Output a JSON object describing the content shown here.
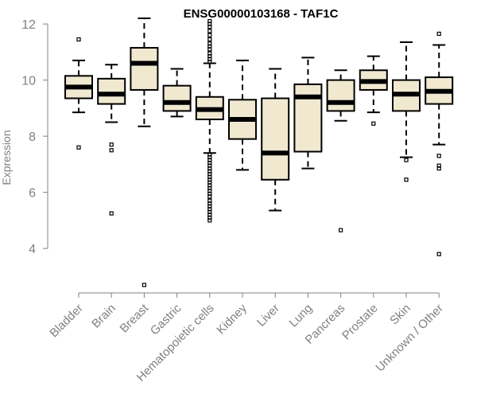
{
  "chart_data": {
    "type": "boxplot",
    "title": "ENSG00000103168 - TAF1C",
    "ylabel": "Expression",
    "xlabel": "",
    "ylim": [
      2.5,
      12.4
    ],
    "yticks": [
      4,
      6,
      8,
      10,
      12
    ],
    "categories": [
      "Bladder",
      "Brain",
      "Breast",
      "Gastric",
      "Hematopoietic cells",
      "Kidney",
      "Liver",
      "Lung",
      "Pancreas",
      "Prostate",
      "Skin",
      "Unknown / Other"
    ],
    "boxes": [
      {
        "name": "Bladder",
        "whisker_low": 8.85,
        "q1": 9.35,
        "median": 9.75,
        "q3": 10.15,
        "whisker_high": 10.7,
        "outliers": [
          11.45,
          7.6
        ]
      },
      {
        "name": "Brain",
        "whisker_low": 8.5,
        "q1": 9.15,
        "median": 9.5,
        "q3": 10.05,
        "whisker_high": 10.55,
        "outliers": [
          7.7,
          7.5,
          5.25
        ]
      },
      {
        "name": "Breast",
        "whisker_low": 8.35,
        "q1": 9.65,
        "median": 10.6,
        "q3": 11.15,
        "whisker_high": 12.2,
        "outliers": [
          2.7
        ]
      },
      {
        "name": "Gastric",
        "whisker_low": 8.7,
        "q1": 8.9,
        "median": 9.2,
        "q3": 9.8,
        "whisker_high": 10.4,
        "outliers": []
      },
      {
        "name": "Hematopoietic cells",
        "whisker_low": 7.4,
        "q1": 8.6,
        "median": 8.95,
        "q3": 9.4,
        "whisker_high": 10.6,
        "outliers": [
          12.1,
          12.0,
          11.9,
          11.75,
          11.6,
          11.45,
          11.3,
          11.2,
          11.1,
          10.95,
          10.85,
          10.75,
          10.65,
          7.35,
          7.25,
          7.15,
          7.05,
          6.95,
          6.85,
          6.75,
          6.65,
          6.55,
          6.45,
          6.35,
          6.25,
          6.15,
          6.05,
          5.95,
          5.85,
          5.7,
          5.6,
          5.5,
          5.4,
          5.3,
          5.2,
          5.1,
          5.0
        ]
      },
      {
        "name": "Kidney",
        "whisker_low": 6.8,
        "q1": 7.9,
        "median": 8.6,
        "q3": 9.3,
        "whisker_high": 10.7,
        "outliers": []
      },
      {
        "name": "Liver",
        "whisker_low": 5.35,
        "q1": 6.45,
        "median": 7.4,
        "q3": 9.35,
        "whisker_high": 10.4,
        "outliers": []
      },
      {
        "name": "Lung",
        "whisker_low": 6.85,
        "q1": 7.45,
        "median": 9.4,
        "q3": 9.85,
        "whisker_high": 10.8,
        "outliers": []
      },
      {
        "name": "Pancreas",
        "whisker_low": 8.55,
        "q1": 8.9,
        "median": 9.2,
        "q3": 10.0,
        "whisker_high": 10.35,
        "outliers": [
          4.65
        ]
      },
      {
        "name": "Prostate",
        "whisker_low": 8.85,
        "q1": 9.65,
        "median": 9.95,
        "q3": 10.35,
        "whisker_high": 10.85,
        "outliers": [
          8.45
        ]
      },
      {
        "name": "Skin",
        "whisker_low": 7.25,
        "q1": 8.9,
        "median": 9.5,
        "q3": 10.0,
        "whisker_high": 11.35,
        "outliers": [
          7.15,
          6.45
        ]
      },
      {
        "name": "Unknown / Other",
        "whisker_low": 7.7,
        "q1": 9.15,
        "median": 9.6,
        "q3": 10.1,
        "whisker_high": 11.25,
        "outliers": [
          11.65,
          7.3,
          6.95,
          6.85,
          3.8
        ]
      }
    ],
    "colors": {
      "box_fill": "#f0e9d0",
      "stroke": "#000000",
      "axis": "#808080",
      "label": "#808080",
      "title": "#000000"
    }
  }
}
